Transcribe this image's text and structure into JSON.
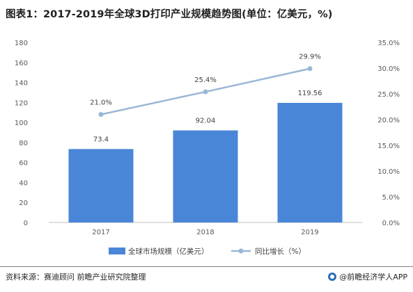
{
  "title": "图表1：2017-2019年全球3D打印产业规模趋势图(单位：亿美元，%)",
  "footer": {
    "source": "资料来源：赛迪顾问 前瞻产业研究院整理",
    "brand": "@前瞻经济学人APP",
    "brand_icon": "qianzhan-logo-icon"
  },
  "colors": {
    "bar": "#4a86d8",
    "line": "#9ab7d6",
    "axis": "#bfbfbf"
  },
  "chart_data": {
    "type": "bar",
    "categories": [
      "2017",
      "2018",
      "2019"
    ],
    "series": [
      {
        "name": "全球市场规模（亿美元）",
        "type": "bar",
        "axis": "left",
        "values": [
          73.4,
          92.04,
          119.56
        ],
        "labels": [
          "73.4",
          "92.04",
          "119.56"
        ]
      },
      {
        "name": "同比增长（%）",
        "type": "line",
        "axis": "right",
        "values": [
          21.0,
          25.4,
          29.9
        ],
        "labels": [
          "21.0%",
          "25.4%",
          "29.9%"
        ]
      }
    ],
    "y_left": {
      "range": [
        0,
        180
      ],
      "ticks": [
        0,
        20,
        40,
        60,
        80,
        100,
        120,
        140,
        160,
        180
      ],
      "tick_labels": [
        "0",
        "20",
        "40",
        "60",
        "80",
        "100",
        "120",
        "140",
        "160",
        "180"
      ]
    },
    "y_right": {
      "range": [
        0,
        35
      ],
      "ticks": [
        0,
        5,
        10,
        15,
        20,
        25,
        30,
        35
      ],
      "tick_labels": [
        "0.0%",
        "5.0%",
        "10.0%",
        "15.0%",
        "20.0%",
        "25.0%",
        "30.0%",
        "35.0%"
      ]
    },
    "grid": false,
    "legend": "bottom"
  }
}
